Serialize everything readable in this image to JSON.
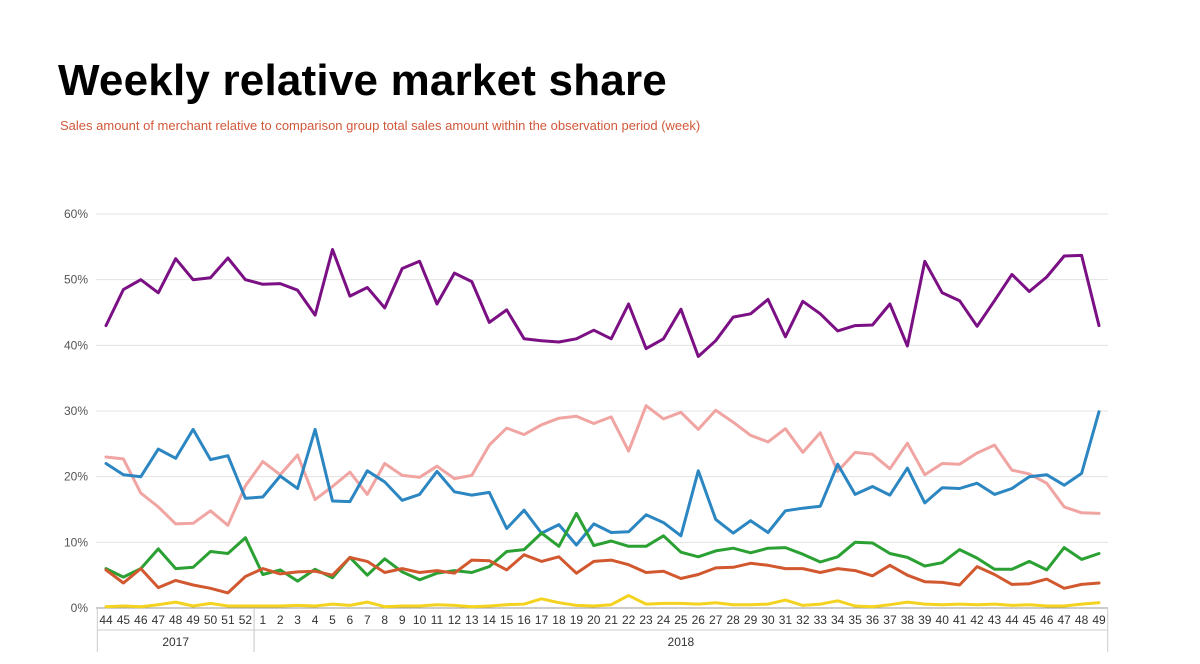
{
  "chart_data": {
    "type": "line",
    "title": "Weekly relative market share",
    "subtitle": "Sales amount of merchant relative to comparison group total sales amount within the observation period (week)",
    "y_ticks": [
      "0%",
      "10%",
      "20%",
      "30%",
      "40%",
      "50%",
      "60%"
    ],
    "ylim": [
      0,
      60
    ],
    "grid": true,
    "legend": "none",
    "years": [
      {
        "label": "2017",
        "start": 0,
        "count": 9
      },
      {
        "label": "2018",
        "start": 9,
        "count": 49
      }
    ],
    "categories": [
      "44",
      "45",
      "46",
      "47",
      "48",
      "49",
      "50",
      "51",
      "52",
      "1",
      "2",
      "3",
      "4",
      "5",
      "6",
      "7",
      "8",
      "9",
      "10",
      "11",
      "12",
      "13",
      "14",
      "15",
      "16",
      "17",
      "18",
      "19",
      "20",
      "21",
      "22",
      "23",
      "24",
      "25",
      "26",
      "27",
      "28",
      "29",
      "30",
      "31",
      "32",
      "33",
      "34",
      "35",
      "36",
      "37",
      "38",
      "39",
      "40",
      "41",
      "42",
      "43",
      "44",
      "45",
      "46",
      "47",
      "48",
      "49"
    ],
    "series": [
      {
        "color": "#7b0f84",
        "values": [
          43,
          48.5,
          50,
          48,
          53.2,
          50,
          50.3,
          53.3,
          50,
          49.3,
          49.4,
          48.4,
          44.6,
          54.6,
          47.5,
          48.8,
          45.7,
          51.7,
          52.8,
          46.3,
          51,
          49.7,
          43.5,
          45.4,
          41,
          40.7,
          40.5,
          41,
          42.3,
          41,
          46.3,
          39.5,
          41,
          45.5,
          38.3,
          40.7,
          44.3,
          44.8,
          47,
          41.3,
          46.7,
          44.8,
          42.2,
          43,
          43.1,
          46.3,
          39.9,
          52.8,
          48,
          46.8,
          42.9,
          46.8,
          50.8,
          48.2,
          50.4,
          53.6,
          53.7,
          43
        ]
      },
      {
        "color": "#f0a5a2",
        "values": [
          23,
          22.7,
          17.5,
          15.4,
          12.8,
          12.9,
          14.8,
          12.6,
          18.6,
          22.3,
          20.3,
          23.3,
          16.5,
          18.5,
          20.7,
          17.3,
          22,
          20.2,
          19.9,
          21.6,
          19.7,
          20.2,
          24.8,
          27.4,
          26.4,
          27.9,
          28.9,
          29.2,
          28.1,
          29.1,
          23.9,
          30.8,
          28.8,
          29.8,
          27.2,
          30.1,
          28.3,
          26.3,
          25.3,
          27.3,
          23.7,
          26.7,
          20.8,
          23.7,
          23.4,
          21.2,
          25.1,
          20.3,
          22,
          21.9,
          23.6,
          24.8,
          21,
          20.4,
          19,
          15.4,
          14.5,
          14.4
        ]
      },
      {
        "color": "#2b86c1",
        "values": [
          22,
          20.3,
          20,
          24.2,
          22.8,
          27.2,
          22.6,
          23.2,
          16.7,
          16.9,
          20.1,
          18.2,
          27.2,
          16.3,
          16.2,
          20.9,
          19.2,
          16.4,
          17.3,
          20.8,
          17.7,
          17.2,
          17.6,
          12.1,
          14.9,
          11.4,
          12.7,
          9.6,
          12.8,
          11.5,
          11.6,
          14.2,
          13,
          11,
          20.9,
          13.5,
          11.4,
          13.3,
          11.5,
          14.8,
          15.2,
          15.5,
          21.9,
          17.3,
          18.5,
          17.2,
          21.3,
          16,
          18.3,
          18.2,
          19,
          17.3,
          18.2,
          20,
          20.3,
          18.7,
          20.5,
          29.9
        ]
      },
      {
        "color": "#2ba033",
        "values": [
          6,
          4.7,
          6,
          9,
          6,
          6.2,
          8.6,
          8.3,
          10.7,
          5.1,
          5.8,
          4.1,
          5.9,
          4.6,
          7.7,
          5,
          7.5,
          5.5,
          4.3,
          5.3,
          5.7,
          5.4,
          6.3,
          8.6,
          8.9,
          11.4,
          9.4,
          14.4,
          9.5,
          10.2,
          9.4,
          9.4,
          11,
          8.5,
          7.8,
          8.7,
          9.1,
          8.4,
          9.1,
          9.2,
          8.2,
          7,
          7.8,
          10,
          9.9,
          8.3,
          7.7,
          6.4,
          6.9,
          8.9,
          7.6,
          5.9,
          5.9,
          7.1,
          5.8,
          9.2,
          7.4,
          8.3
        ]
      },
      {
        "color": "#d1582f",
        "values": [
          5.8,
          3.8,
          6,
          3.1,
          4.2,
          3.5,
          3,
          2.3,
          4.8,
          6,
          5.2,
          5.5,
          5.6,
          5,
          7.7,
          7.1,
          5.4,
          6,
          5.4,
          5.7,
          5.3,
          7.3,
          7.2,
          5.8,
          8.1,
          7.1,
          7.8,
          5.3,
          7.1,
          7.3,
          6.6,
          5.4,
          5.6,
          4.5,
          5.1,
          6.1,
          6.2,
          6.8,
          6.5,
          6,
          6,
          5.4,
          6,
          5.7,
          4.9,
          6.5,
          5,
          4,
          3.9,
          3.5,
          6.3,
          5.1,
          3.6,
          3.7,
          4.4,
          3,
          3.6,
          3.8
        ]
      },
      {
        "color": "#f4d320",
        "values": [
          0.2,
          0.3,
          0.2,
          0.5,
          0.9,
          0.3,
          0.7,
          0.3,
          0.3,
          0.3,
          0.3,
          0.4,
          0.3,
          0.6,
          0.4,
          0.9,
          0.2,
          0.3,
          0.3,
          0.5,
          0.4,
          0.2,
          0.3,
          0.5,
          0.6,
          1.4,
          0.8,
          0.4,
          0.3,
          0.5,
          1.9,
          0.6,
          0.7,
          0.7,
          0.6,
          0.8,
          0.5,
          0.5,
          0.6,
          1.2,
          0.4,
          0.6,
          1.1,
          0.3,
          0.2,
          0.5,
          0.9,
          0.6,
          0.5,
          0.6,
          0.5,
          0.6,
          0.4,
          0.5,
          0.3,
          0.3,
          0.6,
          0.8
        ]
      }
    ]
  }
}
